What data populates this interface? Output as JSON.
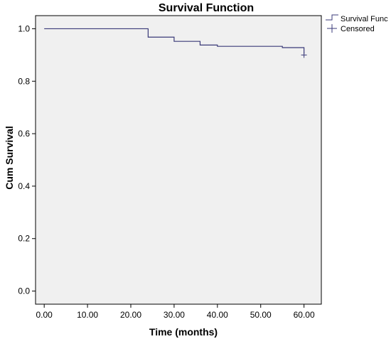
{
  "chart_data": {
    "type": "line",
    "title": "Survival Function",
    "xlabel": "Time (months)",
    "ylabel": "Cum Survival",
    "xlim": [
      -2,
      64
    ],
    "ylim": [
      -0.05,
      1.05
    ],
    "x_ticks": [
      0,
      10,
      20,
      30,
      40,
      50,
      60
    ],
    "x_tick_labels": [
      "0.00",
      "10.00",
      "20.00",
      "30.00",
      "40.00",
      "50.00",
      "60.00"
    ],
    "y_ticks": [
      0.0,
      0.2,
      0.4,
      0.6,
      0.8,
      1.0
    ],
    "y_tick_labels": [
      "0.0",
      "0.2",
      "0.4",
      "0.6",
      "0.8",
      "1.0"
    ],
    "grid": false,
    "legend_position": "top-right",
    "series": [
      {
        "name": "Survival Func",
        "step": true,
        "color": "#3a3a78",
        "x": [
          0,
          24,
          30,
          36,
          40,
          55,
          60
        ],
        "y": [
          1.0,
          0.968,
          0.952,
          0.938,
          0.933,
          0.928,
          0.905
        ]
      }
    ],
    "censored": {
      "name": "Censored",
      "color": "#3a3a78",
      "points": [
        {
          "x": 60,
          "y": 0.9
        }
      ]
    }
  },
  "colors": {
    "plot_background": "#f0f0f0",
    "axis": "#000000"
  }
}
